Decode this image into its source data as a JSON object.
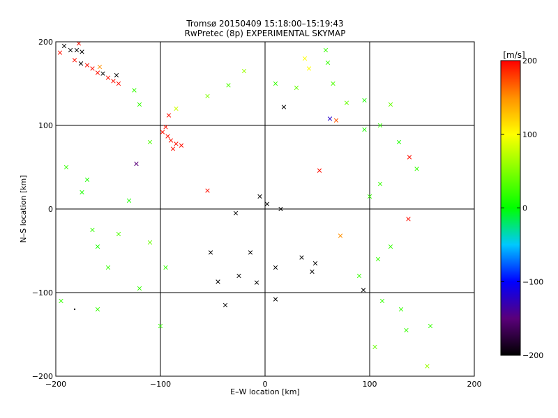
{
  "chart_data": {
    "type": "scatter",
    "title": "Tromsø 20150409 15:18:00–15:19:43",
    "subtitle": "RwPretec (8p) EXPERIMENTAL SKYMAP",
    "xlabel": "E–W location [km]",
    "ylabel": "N–S location [km]",
    "xlim": [
      -200,
      200
    ],
    "ylim": [
      -200,
      200
    ],
    "x_ticks": [
      -200,
      -100,
      0,
      100,
      200
    ],
    "y_ticks": [
      -200,
      -100,
      0,
      100,
      200
    ],
    "grid": true,
    "colorbar": {
      "label": "[m/s]",
      "range": [
        -200,
        200
      ],
      "ticks": [
        -200,
        -100,
        0,
        100,
        200
      ],
      "colormap": "rainbow (black-purple-blue-cyan-green-yellow-red)"
    },
    "points": [
      {
        "x": -192,
        "y": 195,
        "v": -200,
        "m": "x"
      },
      {
        "x": -186,
        "y": 190,
        "v": -200,
        "m": "x"
      },
      {
        "x": -180,
        "y": 190,
        "v": -200,
        "m": "x"
      },
      {
        "x": -175,
        "y": 188,
        "v": -200,
        "m": "x"
      },
      {
        "x": -182,
        "y": 178,
        "v": 195,
        "m": "x"
      },
      {
        "x": -176,
        "y": 174,
        "v": -200,
        "m": "x"
      },
      {
        "x": -170,
        "y": 172,
        "v": 195,
        "m": "x"
      },
      {
        "x": -165,
        "y": 168,
        "v": 195,
        "m": "x"
      },
      {
        "x": -160,
        "y": 163,
        "v": 195,
        "m": "x"
      },
      {
        "x": -155,
        "y": 162,
        "v": -200,
        "m": "x"
      },
      {
        "x": -150,
        "y": 157,
        "v": 195,
        "m": "x"
      },
      {
        "x": -145,
        "y": 153,
        "v": 195,
        "m": "x"
      },
      {
        "x": -140,
        "y": 150,
        "v": 195,
        "m": "x"
      },
      {
        "x": -142,
        "y": 160,
        "v": -200,
        "m": "x"
      },
      {
        "x": -196,
        "y": 187,
        "v": 195,
        "m": "x"
      },
      {
        "x": -178,
        "y": 198,
        "v": 195,
        "m": "x"
      },
      {
        "x": -158,
        "y": 170,
        "v": 150,
        "m": "x"
      },
      {
        "x": -125,
        "y": 142,
        "v": 20,
        "m": "x"
      },
      {
        "x": -92,
        "y": 112,
        "v": 195,
        "m": "x"
      },
      {
        "x": -95,
        "y": 98,
        "v": 195,
        "m": "x"
      },
      {
        "x": -98,
        "y": 92,
        "v": 195,
        "m": "x"
      },
      {
        "x": -93,
        "y": 87,
        "v": 195,
        "m": "x"
      },
      {
        "x": -90,
        "y": 82,
        "v": 195,
        "m": "x"
      },
      {
        "x": -85,
        "y": 78,
        "v": 195,
        "m": "x"
      },
      {
        "x": -80,
        "y": 76,
        "v": 195,
        "m": "x"
      },
      {
        "x": -88,
        "y": 72,
        "v": 195,
        "m": "x"
      },
      {
        "x": -123,
        "y": 54,
        "v": -150,
        "m": "x"
      },
      {
        "x": -55,
        "y": 22,
        "v": 195,
        "m": "x"
      },
      {
        "x": 18,
        "y": 122,
        "v": -200,
        "m": "x"
      },
      {
        "x": 62,
        "y": 108,
        "v": -120,
        "m": "x"
      },
      {
        "x": 68,
        "y": 106,
        "v": 170,
        "m": "x"
      },
      {
        "x": 52,
        "y": 46,
        "v": 195,
        "m": "x"
      },
      {
        "x": 138,
        "y": 62,
        "v": 195,
        "m": "x"
      },
      {
        "x": 137,
        "y": -12,
        "v": 195,
        "m": "x"
      },
      {
        "x": 72,
        "y": -32,
        "v": 150,
        "m": "x"
      },
      {
        "x": 38,
        "y": 180,
        "v": 100,
        "m": "x"
      },
      {
        "x": 42,
        "y": 168,
        "v": 100,
        "m": "x"
      },
      {
        "x": 58,
        "y": 190,
        "v": 20,
        "m": "x"
      },
      {
        "x": 2,
        "y": 6,
        "v": -200,
        "m": "x"
      },
      {
        "x": -5,
        "y": 15,
        "v": -200,
        "m": "x"
      },
      {
        "x": 15,
        "y": 0,
        "v": -200,
        "m": "x"
      },
      {
        "x": -28,
        "y": -5,
        "v": -200,
        "m": "x"
      },
      {
        "x": -52,
        "y": -52,
        "v": -200,
        "m": "x"
      },
      {
        "x": -14,
        "y": -52,
        "v": -200,
        "m": "x"
      },
      {
        "x": -45,
        "y": -87,
        "v": -200,
        "m": "x"
      },
      {
        "x": -25,
        "y": -80,
        "v": -200,
        "m": "x"
      },
      {
        "x": -8,
        "y": -88,
        "v": -200,
        "m": "x"
      },
      {
        "x": 10,
        "y": -70,
        "v": -200,
        "m": "x"
      },
      {
        "x": 35,
        "y": -58,
        "v": -200,
        "m": "x"
      },
      {
        "x": 45,
        "y": -75,
        "v": -200,
        "m": "x"
      },
      {
        "x": 48,
        "y": -65,
        "v": -200,
        "m": "x"
      },
      {
        "x": 10,
        "y": -108,
        "v": -200,
        "m": "x"
      },
      {
        "x": -38,
        "y": -115,
        "v": -200,
        "m": "x"
      },
      {
        "x": 94,
        "y": -97,
        "v": -200,
        "m": "x"
      },
      {
        "x": -182,
        "y": -120,
        "v": -200,
        "m": "."
      },
      {
        "x": -170,
        "y": 35,
        "v": 10,
        "m": "x"
      },
      {
        "x": -190,
        "y": 50,
        "v": 20,
        "m": "x"
      },
      {
        "x": -175,
        "y": 20,
        "v": 10,
        "m": "x"
      },
      {
        "x": -165,
        "y": -25,
        "v": 20,
        "m": "x"
      },
      {
        "x": -160,
        "y": -45,
        "v": 10,
        "m": "x"
      },
      {
        "x": -150,
        "y": -70,
        "v": 20,
        "m": "x"
      },
      {
        "x": -140,
        "y": -30,
        "v": 30,
        "m": "x"
      },
      {
        "x": -130,
        "y": 10,
        "v": 10,
        "m": "x"
      },
      {
        "x": -195,
        "y": -110,
        "v": 20,
        "m": "x"
      },
      {
        "x": -160,
        "y": -120,
        "v": 20,
        "m": "x"
      },
      {
        "x": -120,
        "y": -95,
        "v": 20,
        "m": "x"
      },
      {
        "x": -100,
        "y": -140,
        "v": 20,
        "m": "x"
      },
      {
        "x": -95,
        "y": -70,
        "v": 20,
        "m": "x"
      },
      {
        "x": -110,
        "y": -40,
        "v": 40,
        "m": "x"
      },
      {
        "x": 120,
        "y": 125,
        "v": 40,
        "m": "x"
      },
      {
        "x": 95,
        "y": 95,
        "v": 10,
        "m": "x"
      },
      {
        "x": 110,
        "y": 100,
        "v": 20,
        "m": "x"
      },
      {
        "x": 128,
        "y": 80,
        "v": 10,
        "m": "x"
      },
      {
        "x": 145,
        "y": 48,
        "v": 20,
        "m": "x"
      },
      {
        "x": 110,
        "y": 30,
        "v": 20,
        "m": "x"
      },
      {
        "x": 100,
        "y": 15,
        "v": 20,
        "m": "x"
      },
      {
        "x": 120,
        "y": -45,
        "v": 20,
        "m": "x"
      },
      {
        "x": 108,
        "y": -60,
        "v": 20,
        "m": "x"
      },
      {
        "x": 90,
        "y": -80,
        "v": 20,
        "m": "x"
      },
      {
        "x": 112,
        "y": -110,
        "v": 20,
        "m": "x"
      },
      {
        "x": 130,
        "y": -120,
        "v": 20,
        "m": "x"
      },
      {
        "x": 135,
        "y": -145,
        "v": 20,
        "m": "x"
      },
      {
        "x": 158,
        "y": -140,
        "v": 20,
        "m": "x"
      },
      {
        "x": 105,
        "y": -165,
        "v": 40,
        "m": "x"
      },
      {
        "x": 155,
        "y": -188,
        "v": 60,
        "m": "x"
      },
      {
        "x": -120,
        "y": 125,
        "v": 20,
        "m": "x"
      },
      {
        "x": -110,
        "y": 80,
        "v": 30,
        "m": "x"
      },
      {
        "x": 60,
        "y": 175,
        "v": 20,
        "m": "x"
      },
      {
        "x": 65,
        "y": 150,
        "v": 30,
        "m": "x"
      },
      {
        "x": 78,
        "y": 127,
        "v": 40,
        "m": "x"
      },
      {
        "x": 95,
        "y": 130,
        "v": 10,
        "m": "x"
      },
      {
        "x": 30,
        "y": 145,
        "v": 40,
        "m": "x"
      },
      {
        "x": -85,
        "y": 120,
        "v": 80,
        "m": "x"
      },
      {
        "x": -55,
        "y": 135,
        "v": 50,
        "m": "x"
      },
      {
        "x": -35,
        "y": 148,
        "v": 30,
        "m": "x"
      },
      {
        "x": -20,
        "y": 165,
        "v": 60,
        "m": "x"
      },
      {
        "x": 10,
        "y": 150,
        "v": 20,
        "m": "x"
      }
    ]
  }
}
